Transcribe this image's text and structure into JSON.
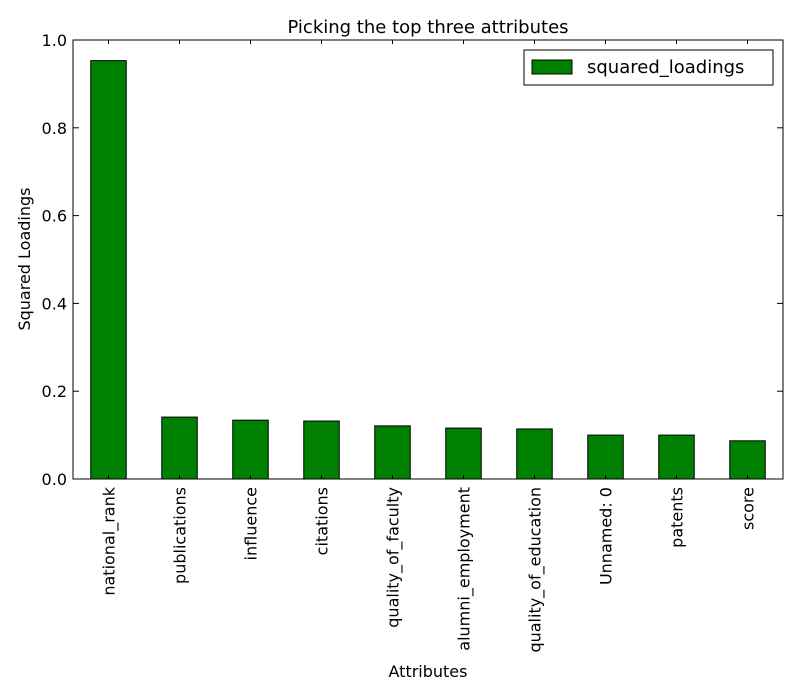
{
  "chart_data": {
    "type": "bar",
    "title": "Picking the top three attributes",
    "xlabel": "Attributes",
    "ylabel": "Squared Loadings",
    "ylim": [
      0,
      1.0
    ],
    "yticks": [
      0.0,
      0.2,
      0.4,
      0.6,
      0.8,
      1.0
    ],
    "ytick_labels": [
      "0.0",
      "0.2",
      "0.4",
      "0.6",
      "0.8",
      "1.0"
    ],
    "grid": false,
    "legend": {
      "placement": "top-right",
      "entries": [
        "squared_loadings"
      ]
    },
    "categories": [
      "national_rank",
      "publications",
      "influence",
      "citations",
      "quality_of_faculty",
      "alumni_employment",
      "quality_of_education",
      "Unnamed: 0",
      "patents",
      "score"
    ],
    "series": [
      {
        "name": "squared_loadings",
        "color": "#008000",
        "values": [
          0.953,
          0.141,
          0.134,
          0.132,
          0.121,
          0.116,
          0.114,
          0.1,
          0.1,
          0.087
        ]
      }
    ]
  }
}
